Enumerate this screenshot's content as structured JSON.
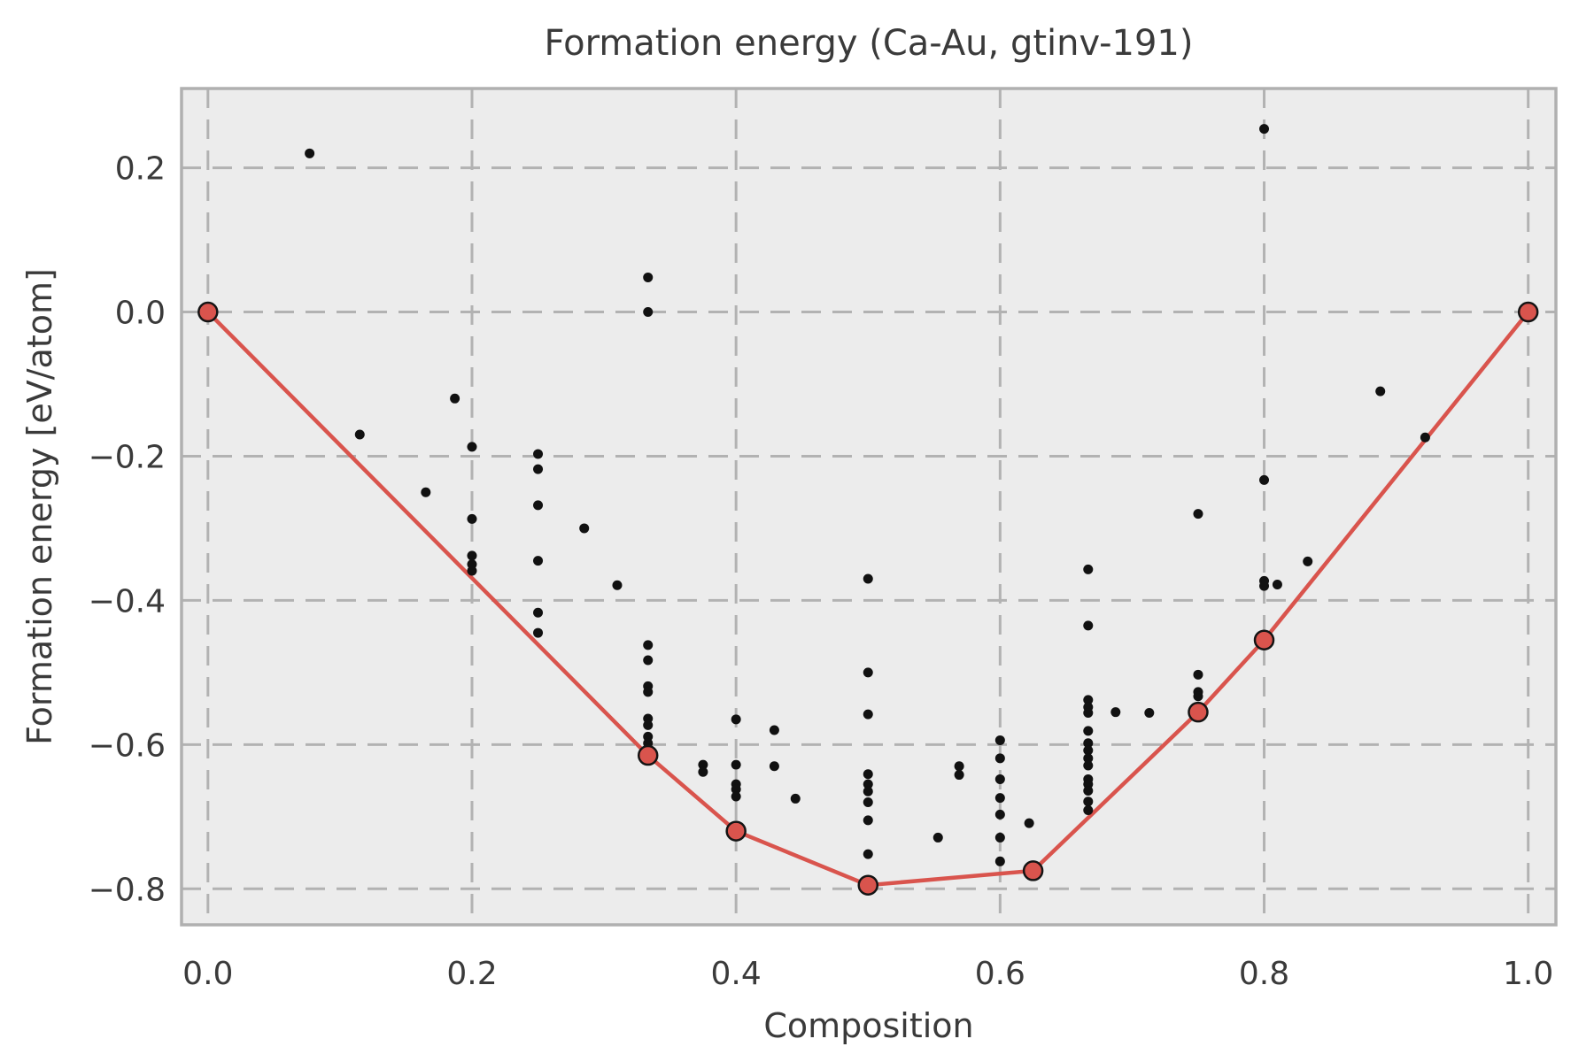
{
  "figure": {
    "kind": "matplotlib-style scatter with convex hull",
    "background": "#ffffff"
  },
  "chart_data": {
    "type": "scatter",
    "title": "Formation energy (Ca-Au, gtinv-191)",
    "xlabel": "Composition",
    "ylabel": "Formation energy [eV/atom]",
    "xlim": [
      -0.02,
      1.021
    ],
    "ylim": [
      -0.85,
      0.31
    ],
    "grid": "dashed",
    "xticks": [
      0.0,
      0.2,
      0.4,
      0.6,
      0.8,
      1.0
    ],
    "yticks": [
      0.2,
      0.0,
      -0.2,
      -0.4,
      -0.6,
      -0.8
    ],
    "xtick_labels": [
      "0.0",
      "0.2",
      "0.4",
      "0.6",
      "0.8",
      "1.0"
    ],
    "ytick_labels": [
      "0.2",
      "0.0",
      "−0.2",
      "−0.4",
      "−0.6",
      "−0.8"
    ],
    "colors": {
      "axes_background": "#ececec",
      "grid": "#b2b2b2",
      "spine": "#b0b0b0",
      "hull_line": "#d9544d",
      "hull_marker_fill": "#d9544d",
      "hull_marker_edge": "#141414",
      "scatter": "#111111",
      "text": "#3a3a3a"
    },
    "series": [
      {
        "name": "convex-hull",
        "type": "line",
        "points": [
          [
            0.0,
            0.0
          ],
          [
            0.3333,
            -0.615
          ],
          [
            0.4,
            -0.72
          ],
          [
            0.5,
            -0.795
          ],
          [
            0.625,
            -0.775
          ],
          [
            0.75,
            -0.555
          ],
          [
            0.8,
            -0.455
          ],
          [
            1.0,
            0.0
          ]
        ]
      },
      {
        "name": "structures",
        "type": "scatter",
        "points": [
          [
            0.077,
            0.22
          ],
          [
            0.115,
            -0.17
          ],
          [
            0.165,
            -0.25
          ],
          [
            0.187,
            -0.12
          ],
          [
            0.2,
            -0.187
          ],
          [
            0.2,
            -0.287
          ],
          [
            0.2,
            -0.338
          ],
          [
            0.2,
            -0.35
          ],
          [
            0.2,
            -0.359
          ],
          [
            0.25,
            -0.197
          ],
          [
            0.25,
            -0.218
          ],
          [
            0.25,
            -0.268
          ],
          [
            0.25,
            -0.345
          ],
          [
            0.25,
            -0.417
          ],
          [
            0.25,
            -0.445
          ],
          [
            0.285,
            -0.3
          ],
          [
            0.31,
            -0.379
          ],
          [
            0.3333,
            0.048
          ],
          [
            0.3333,
            0.0
          ],
          [
            0.3333,
            -0.462
          ],
          [
            0.3333,
            -0.483
          ],
          [
            0.3333,
            -0.519
          ],
          [
            0.3333,
            -0.527
          ],
          [
            0.3333,
            -0.564
          ],
          [
            0.3333,
            -0.573
          ],
          [
            0.3333,
            -0.589
          ],
          [
            0.3333,
            -0.598
          ],
          [
            0.375,
            -0.628
          ],
          [
            0.375,
            -0.638
          ],
          [
            0.4,
            -0.565
          ],
          [
            0.4,
            -0.628
          ],
          [
            0.4,
            -0.655
          ],
          [
            0.4,
            -0.662
          ],
          [
            0.4,
            -0.672
          ],
          [
            0.429,
            -0.58
          ],
          [
            0.429,
            -0.63
          ],
          [
            0.445,
            -0.675
          ],
          [
            0.5,
            -0.37
          ],
          [
            0.5,
            -0.5
          ],
          [
            0.5,
            -0.558
          ],
          [
            0.5,
            -0.641
          ],
          [
            0.5,
            -0.655
          ],
          [
            0.5,
            -0.665
          ],
          [
            0.5,
            -0.68
          ],
          [
            0.5,
            -0.705
          ],
          [
            0.5,
            -0.752
          ],
          [
            0.553,
            -0.729
          ],
          [
            0.569,
            -0.63
          ],
          [
            0.569,
            -0.642
          ],
          [
            0.6,
            -0.594
          ],
          [
            0.6,
            -0.619
          ],
          [
            0.6,
            -0.648
          ],
          [
            0.6,
            -0.674
          ],
          [
            0.6,
            -0.697
          ],
          [
            0.6,
            -0.729
          ],
          [
            0.6,
            -0.762
          ],
          [
            0.622,
            -0.709
          ],
          [
            0.6667,
            -0.357
          ],
          [
            0.6667,
            -0.435
          ],
          [
            0.6667,
            -0.538
          ],
          [
            0.6667,
            -0.548
          ],
          [
            0.6667,
            -0.556
          ],
          [
            0.6667,
            -0.581
          ],
          [
            0.6667,
            -0.598
          ],
          [
            0.6667,
            -0.608
          ],
          [
            0.6667,
            -0.619
          ],
          [
            0.6667,
            -0.629
          ],
          [
            0.6667,
            -0.648
          ],
          [
            0.6667,
            -0.655
          ],
          [
            0.6667,
            -0.664
          ],
          [
            0.6667,
            -0.679
          ],
          [
            0.6667,
            -0.691
          ],
          [
            0.6875,
            -0.555
          ],
          [
            0.713,
            -0.556
          ],
          [
            0.75,
            -0.28
          ],
          [
            0.75,
            -0.503
          ],
          [
            0.75,
            -0.527
          ],
          [
            0.75,
            -0.533
          ],
          [
            0.8,
            0.254
          ],
          [
            0.8,
            -0.233
          ],
          [
            0.8,
            -0.373
          ],
          [
            0.8,
            -0.38
          ],
          [
            0.81,
            -0.378
          ],
          [
            0.833,
            -0.346
          ],
          [
            0.888,
            -0.11
          ],
          [
            0.922,
            -0.174
          ]
        ]
      }
    ]
  }
}
